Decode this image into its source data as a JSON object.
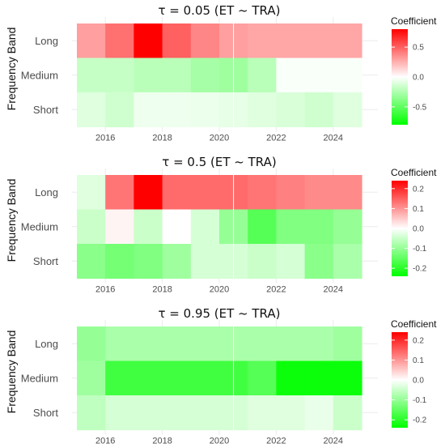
{
  "y_axis_label": "Frequency Band",
  "colors": {
    "positive": "#ff0000",
    "zero": "#ffffff",
    "negative": "#00ff00"
  },
  "chart_data": [
    {
      "type": "heatmap",
      "title": "τ = 0.05  (ET ~ TRA)",
      "rows": [
        "Long",
        "Medium",
        "Short"
      ],
      "x": [
        2015.5,
        2016.5,
        2017.5,
        2018.5,
        2019.5,
        2020.5,
        2021.5,
        2022.5,
        2023.5,
        2024.5
      ],
      "xlim": [
        2015,
        2025
      ],
      "x_ticks": [
        "2016",
        "2018",
        "2020",
        "2022",
        "2024"
      ],
      "values": [
        [
          0.3,
          0.45,
          0.9,
          0.5,
          0.38,
          0.3,
          0.28,
          0.28,
          0.28,
          0.28
        ],
        [
          -0.18,
          -0.18,
          -0.22,
          -0.22,
          -0.28,
          -0.3,
          -0.22,
          -0.02,
          -0.02,
          -0.02
        ],
        [
          -0.1,
          -0.15,
          -0.05,
          -0.05,
          -0.06,
          -0.08,
          -0.1,
          -0.12,
          -0.15,
          -0.1
        ]
      ],
      "limits": [
        -0.8,
        0.8
      ],
      "legend": {
        "title": "Coefficient",
        "ticks": [
          0.5,
          0.0,
          -0.5
        ],
        "tick_labels": [
          "0.5",
          "0.0",
          "-0.5"
        ]
      }
    },
    {
      "type": "heatmap",
      "title": "τ = 0.5  (ET ~ TRA)",
      "rows": [
        "Long",
        "Medium",
        "Short"
      ],
      "x": [
        2015.5,
        2016.5,
        2017.5,
        2018.5,
        2019.5,
        2020.5,
        2021.5,
        2022.5,
        2023.5,
        2024.5
      ],
      "xlim": [
        2015,
        2025
      ],
      "x_ticks": [
        "2016",
        "2018",
        "2020",
        "2022",
        "2024"
      ],
      "values": [
        [
          -0.03,
          0.13,
          0.24,
          0.14,
          0.14,
          0.14,
          0.13,
          0.12,
          0.11,
          0.11
        ],
        [
          -0.05,
          0.01,
          -0.05,
          0.0,
          -0.04,
          -0.1,
          -0.16,
          -0.12,
          -0.12,
          -0.1
        ],
        [
          -0.11,
          -0.13,
          -0.12,
          -0.09,
          -0.04,
          -0.04,
          -0.05,
          -0.04,
          -0.11,
          -0.08
        ]
      ],
      "limits": [
        -0.24,
        0.24
      ],
      "legend": {
        "title": "Coefficient",
        "ticks": [
          0.2,
          0.1,
          0.0,
          -0.1,
          -0.2
        ],
        "tick_labels": [
          "0.2",
          "0.1",
          "0.0",
          "-0.1",
          "-0.2"
        ]
      }
    },
    {
      "type": "heatmap",
      "title": "τ = 0.95  (ET ~ TRA)",
      "rows": [
        "Long",
        "Medium",
        "Short"
      ],
      "x": [
        2015.5,
        2016.5,
        2017.5,
        2018.5,
        2019.5,
        2020.5,
        2021.5,
        2022.5,
        2023.5,
        2024.5
      ],
      "xlim": [
        2015,
        2025
      ],
      "x_ticks": [
        "2016",
        "2018",
        "2020",
        "2022",
        "2024"
      ],
      "values": [
        [
          -0.1,
          -0.08,
          -0.08,
          -0.08,
          -0.08,
          -0.08,
          -0.08,
          -0.08,
          -0.08,
          -0.09
        ],
        [
          -0.09,
          -0.18,
          -0.18,
          -0.18,
          -0.18,
          -0.18,
          -0.16,
          -0.23,
          -0.23,
          -0.23
        ],
        [
          -0.06,
          -0.04,
          -0.04,
          -0.04,
          -0.04,
          -0.04,
          -0.03,
          -0.03,
          -0.02,
          -0.05
        ]
      ],
      "limits": [
        -0.24,
        0.24
      ],
      "legend": {
        "title": "Coefficient",
        "ticks": [
          0.2,
          0.1,
          0.0,
          -0.1,
          -0.2
        ],
        "tick_labels": [
          "0.2",
          "0.1",
          "0.0",
          "-0.1",
          "-0.2"
        ]
      }
    }
  ]
}
